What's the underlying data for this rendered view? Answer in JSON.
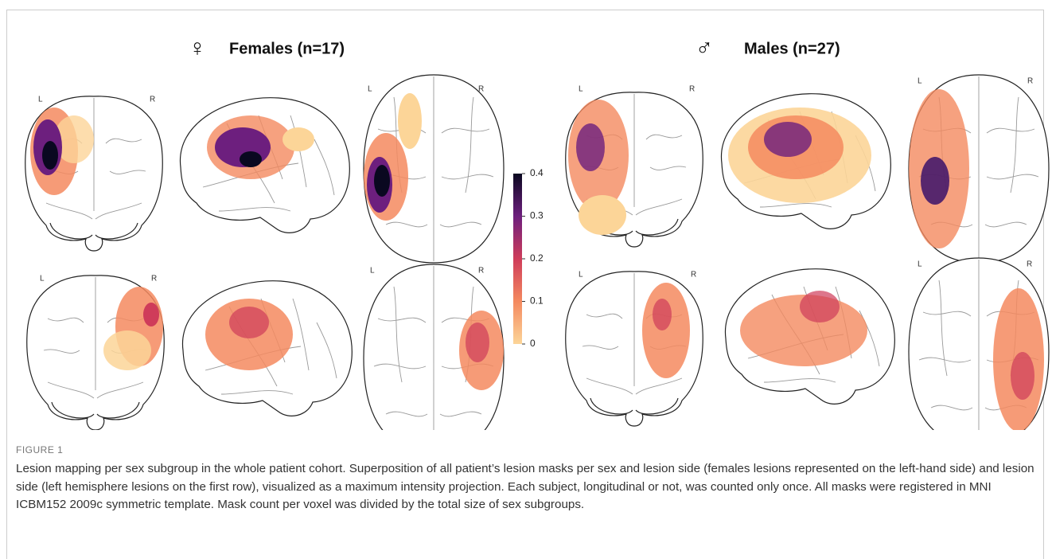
{
  "figure": {
    "groups": [
      {
        "symbol": "♀",
        "title": "Females (n=17)"
      },
      {
        "symbol": "♂",
        "title": "Males (n=27)"
      }
    ],
    "panels": [
      {
        "left": "L",
        "right": "R"
      },
      {
        "left": "L",
        "right": "R"
      },
      {
        "left": "L",
        "right": "R"
      },
      {
        "left": "L",
        "right": "R"
      },
      {
        "left": "L",
        "right": "R"
      },
      {
        "left": "L",
        "right": "R"
      },
      {
        "left": "L",
        "right": "R"
      },
      {
        "left": "L",
        "right": "R"
      }
    ],
    "colorbar": {
      "lim": [
        0,
        0.4
      ],
      "ticks": [
        0,
        0.1,
        0.2,
        0.3,
        0.4
      ]
    },
    "label": "FIGURE 1",
    "caption": "Lesion mapping per sex subgroup in the whole patient cohort. Superposition of all patient’s lesion masks per sex and lesion side (females lesions represented on the left-hand side) and lesion side (left hemisphere lesions on the first row), visualized as a maximum intensity projection. Each subject, longitudinal or not, was counted only once. All masks were registered in MNI ICBM152 2009c symmetric template. Mask count per voxel was divided by the total size of sex subgroups."
  }
}
